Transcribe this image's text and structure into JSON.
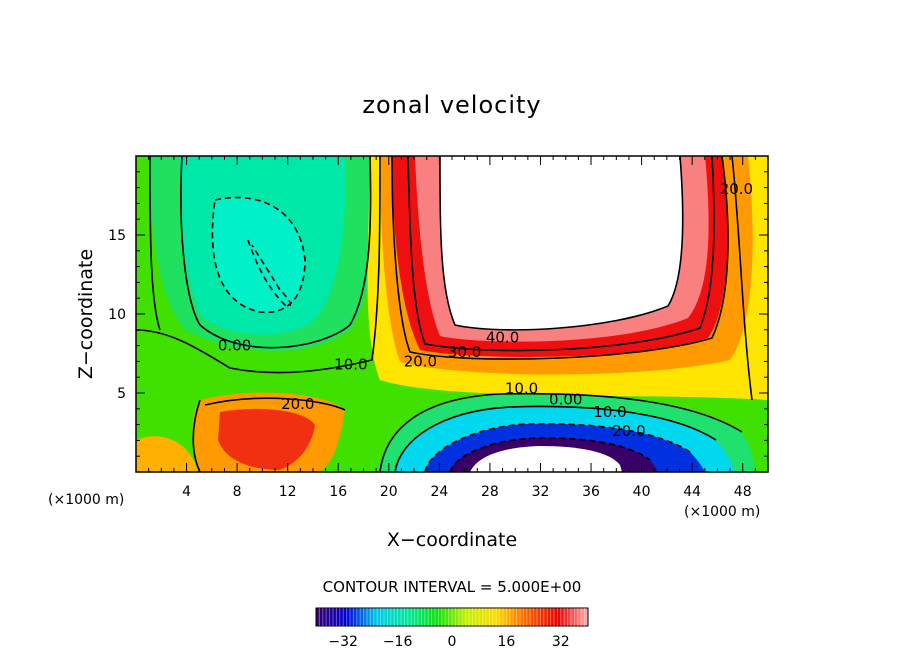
{
  "chart_data": {
    "type": "contour",
    "title": "zonal velocity",
    "xlabel": "X−coordinate",
    "ylabel": "Z−coordinate",
    "x_unit": "(×1000 m)",
    "z_unit": "(×1000 m)",
    "xlim": [
      0,
      50
    ],
    "ylim": [
      0,
      20
    ],
    "x_ticks": [
      4,
      8,
      12,
      16,
      20,
      24,
      28,
      32,
      36,
      40,
      44,
      48
    ],
    "y_ticks": [
      5,
      10,
      15
    ],
    "contour_interval_text": "CONTOUR INTERVAL = 5.000E+00",
    "contour_interval": 5,
    "contour_labels": [
      {
        "text": "40.0",
        "x": 29.0,
        "z": 8.5
      },
      {
        "text": "30.0",
        "x": 26.0,
        "z": 7.6
      },
      {
        "text": "20.0",
        "x": 22.5,
        "z": 7.0
      },
      {
        "text": "10.0",
        "x": 17.0,
        "z": 6.8
      },
      {
        "text": "0.00",
        "x": 7.8,
        "z": 8.0
      },
      {
        "text": "20.0",
        "x": 12.8,
        "z": 4.3
      },
      {
        "text": "10.0",
        "x": 30.5,
        "z": 5.3
      },
      {
        "text": "0.00",
        "x": 34.0,
        "z": 4.6
      },
      {
        "text": "10.0",
        "x": 37.5,
        "z": 3.8
      },
      {
        "text": "20.0",
        "x": 39.0,
        "z": 2.6
      },
      {
        "text": "20.0",
        "x": 47.5,
        "z": 17.9
      }
    ],
    "colorbar": {
      "min": -40,
      "max": 40,
      "tick_values": [
        -32,
        -16,
        0,
        16,
        32
      ],
      "tick_labels": [
        "−32",
        "−16",
        "0",
        "16",
        "32"
      ],
      "colors": [
        "#3a0068",
        "#0000d8",
        "#00c8e8",
        "#00e8a0",
        "#10e010",
        "#c8f000",
        "#ffd800",
        "#ff6000",
        "#e80000",
        "#ffb0b0"
      ]
    }
  }
}
